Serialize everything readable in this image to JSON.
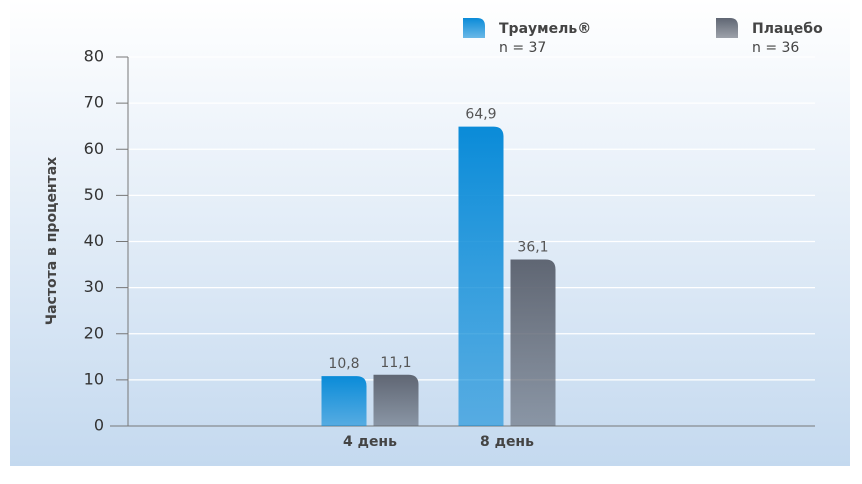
{
  "chart_data": {
    "type": "bar",
    "categories": [
      "4 день",
      "8 день"
    ],
    "series": [
      {
        "name": "Траумель®",
        "note": "n = 37",
        "color": "#0a8bd8",
        "values": [
          10.8,
          64.9
        ],
        "value_labels": [
          "10,8",
          "64,9"
        ]
      },
      {
        "name": "Плацебо",
        "note": "n = 36",
        "color": "#5f6673",
        "values": [
          11.1,
          36.1
        ],
        "value_labels": [
          "11,1",
          "36,1"
        ]
      }
    ],
    "ylabel": "Частота в процентах",
    "ylim": [
      0,
      80
    ],
    "yticks": [
      0,
      10,
      20,
      30,
      40,
      50,
      60,
      70,
      80
    ],
    "grid": true
  }
}
